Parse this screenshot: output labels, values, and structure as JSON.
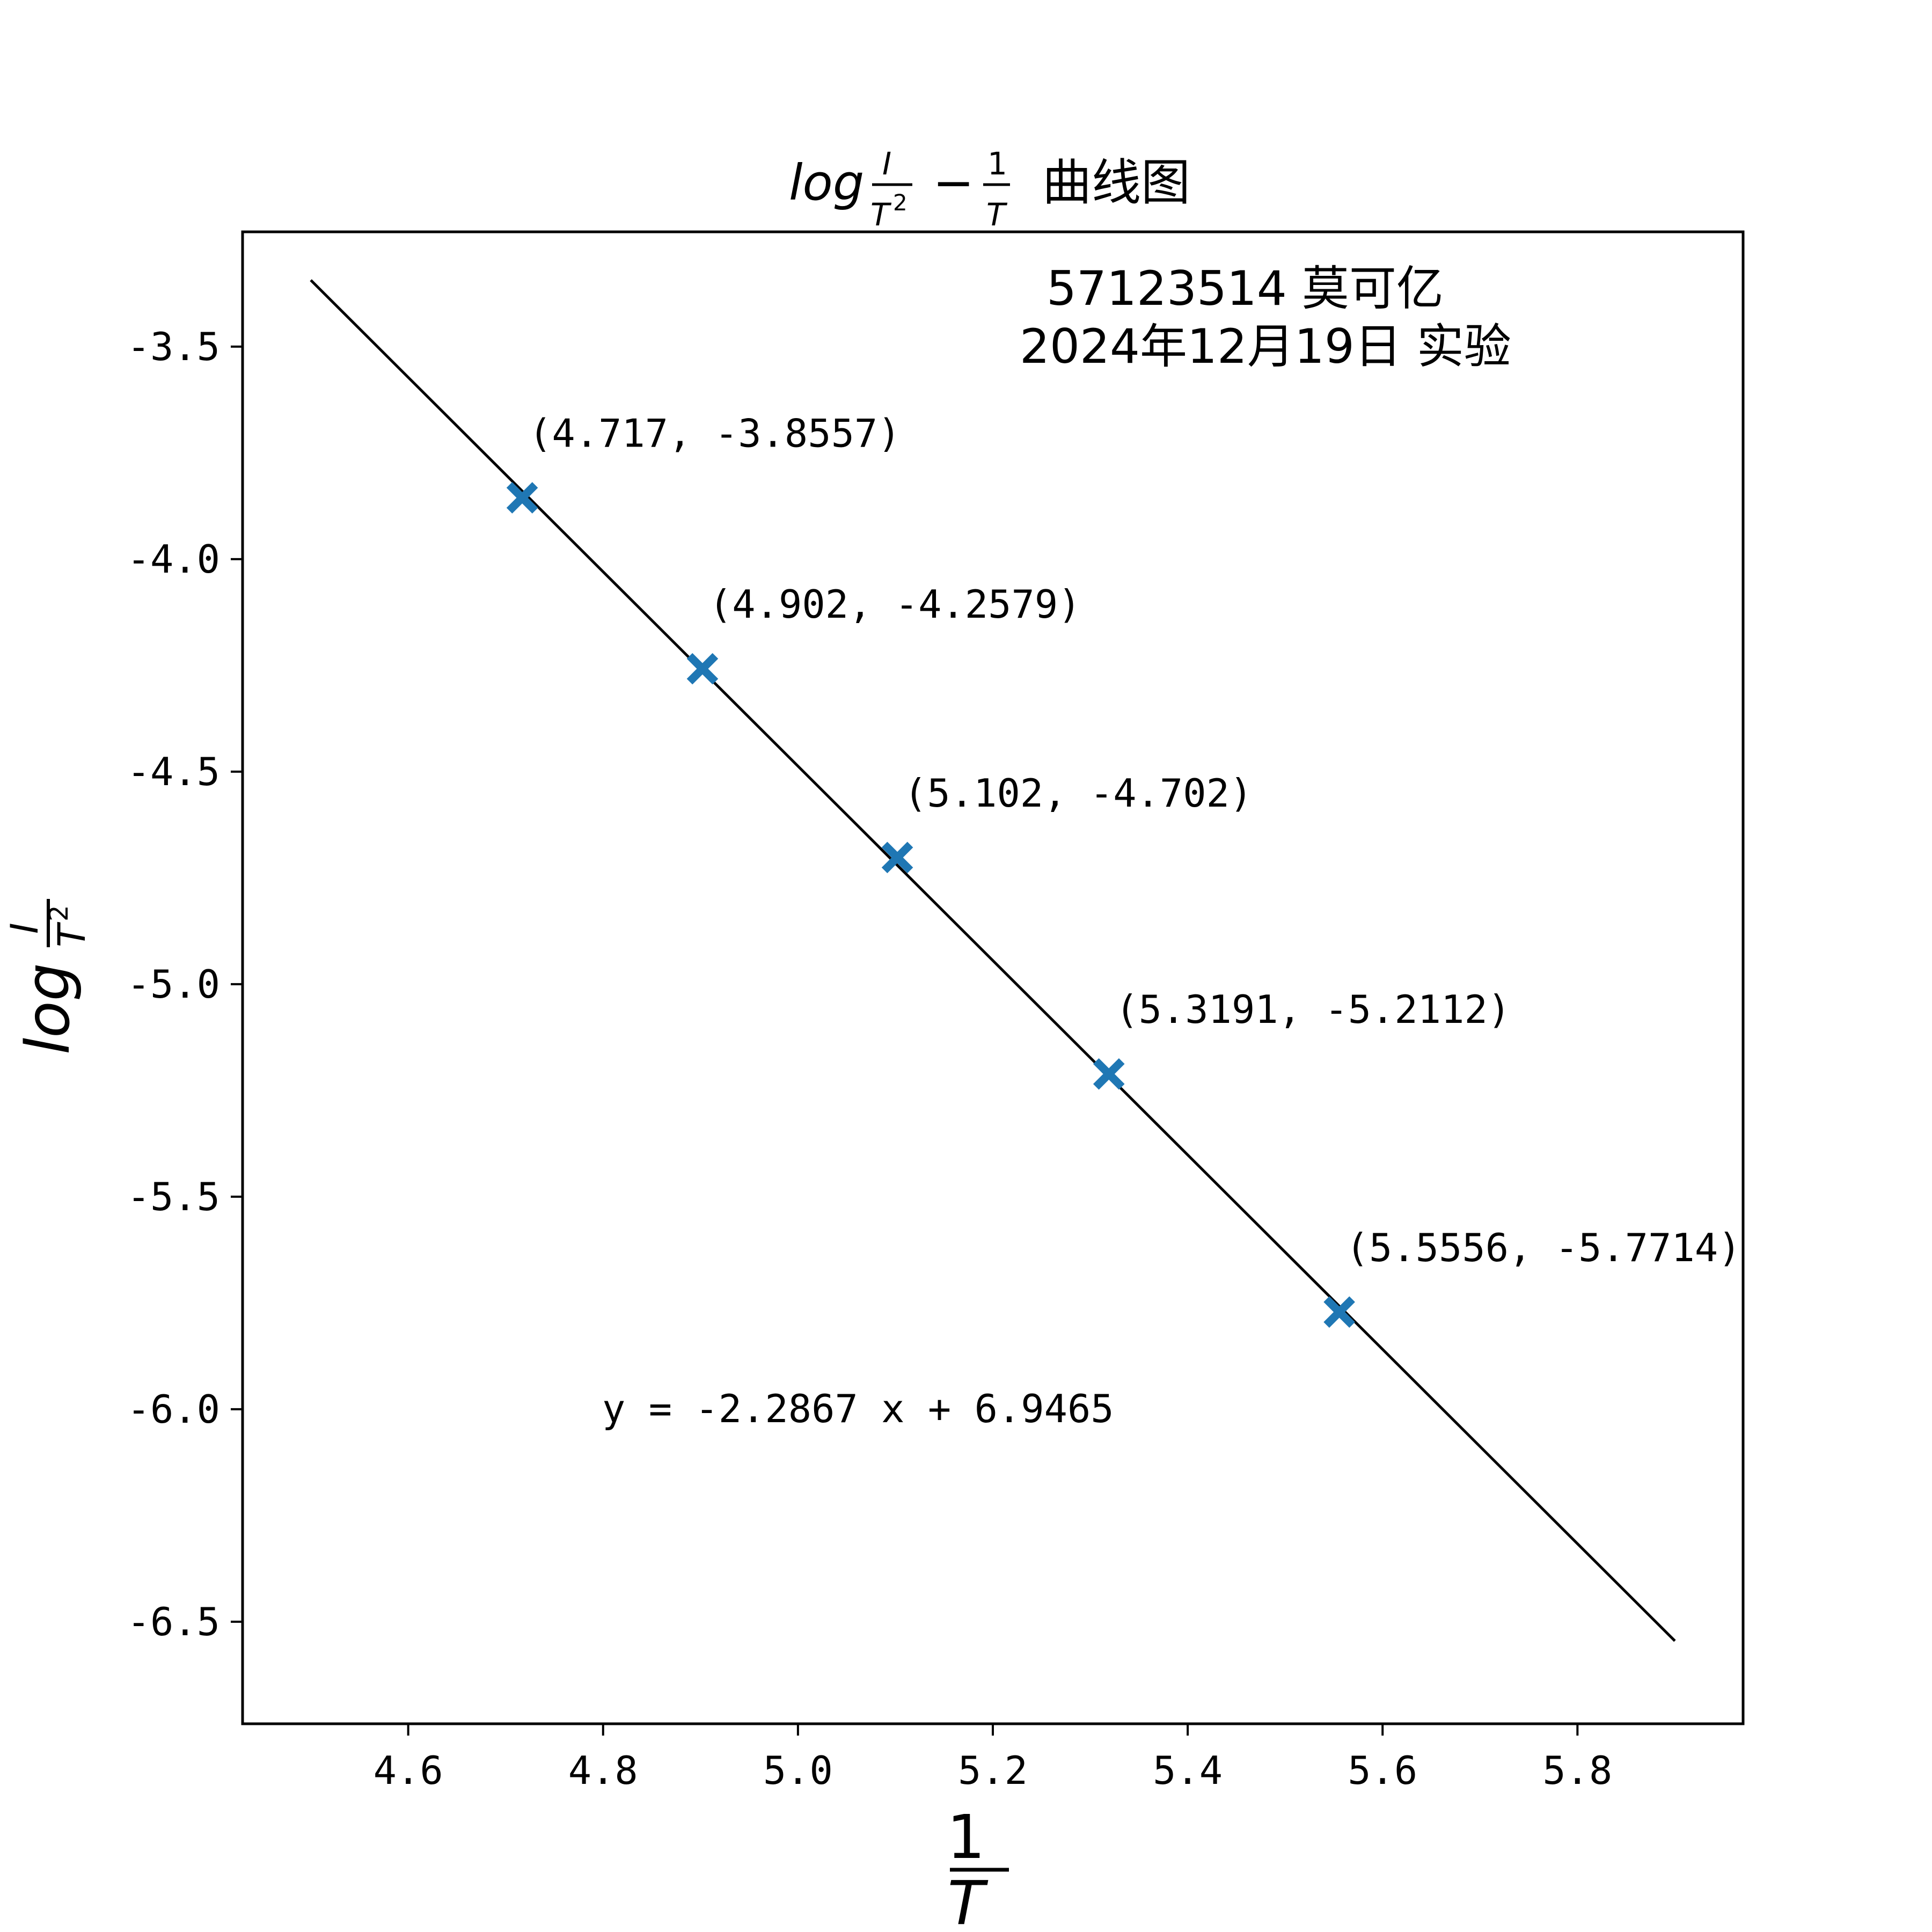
{
  "title": {
    "log": "log",
    "num": "I",
    "den": "T",
    "sup": "2",
    "minus": "−",
    "one": "1",
    "rest": "曲线图"
  },
  "info": {
    "line1": "57123514 莫可亿",
    "line2": "2024年12月19日 实验"
  },
  "ylabel": {
    "log": "log",
    "num": "I",
    "den": "T",
    "sup": "2"
  },
  "xlabel": {
    "num": "1",
    "den": "T"
  },
  "chart_data": {
    "type": "scatter",
    "x_ticks": [
      "4.6",
      "4.8",
      "5.0",
      "5.2",
      "5.4",
      "5.6",
      "5.8"
    ],
    "y_ticks": [
      "-3.5",
      "-4.0",
      "-4.5",
      "-5.0",
      "-5.5",
      "-6.0",
      "-6.5"
    ],
    "xlim": [
      4.43,
      5.97
    ],
    "ylim": [
      -6.74,
      -3.23
    ],
    "grid": false,
    "marker_color": "#1f77b4",
    "line_color": "#000000",
    "points": [
      {
        "x": 4.717,
        "y": -3.8557,
        "label": "(4.717, -3.8557)"
      },
      {
        "x": 4.902,
        "y": -4.2579,
        "label": "(4.902, -4.2579)"
      },
      {
        "x": 5.102,
        "y": -4.702,
        "label": "(5.102, -4.702)"
      },
      {
        "x": 5.3191,
        "y": -5.2112,
        "label": "(5.3191, -5.2112)"
      },
      {
        "x": 5.5556,
        "y": -5.7714,
        "label": "(5.5556, -5.7714)"
      }
    ],
    "fit": {
      "slope": -2.2867,
      "intercept": 6.9465,
      "x_range": [
        4.5,
        5.9
      ]
    },
    "equation": "y = -2.2867 x + 6.9465"
  }
}
